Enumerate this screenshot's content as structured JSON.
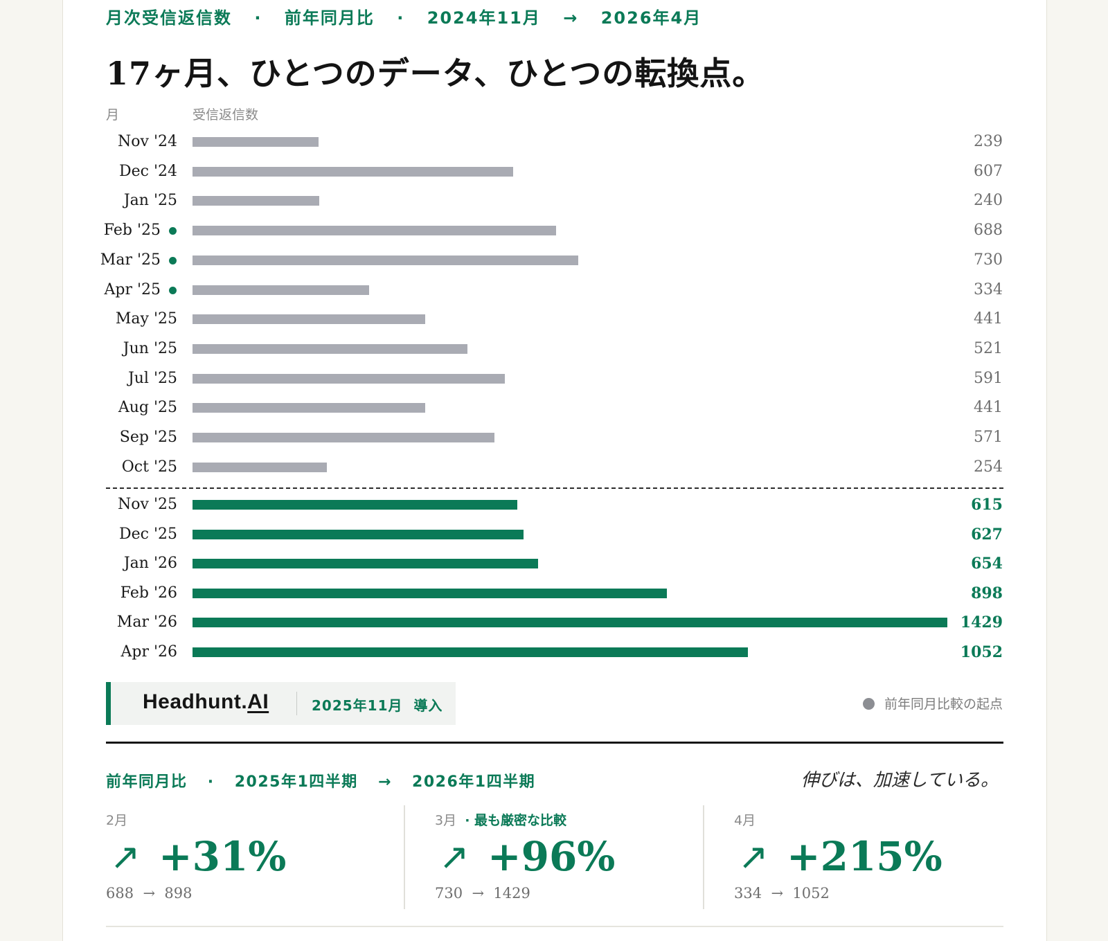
{
  "header": {
    "eyebrow": [
      "月次受信返信数",
      "·",
      "前年同月比",
      "·",
      "2024年11月",
      "→",
      "2026年4月"
    ],
    "headline": "17ヶ月、ひとつのデータ、ひとつの転換点。"
  },
  "chart_data": {
    "type": "bar",
    "orientation": "horizontal",
    "xlabel": "受信返信数",
    "ylabel": "月",
    "xlim": [
      0,
      1429
    ],
    "grid": false,
    "categories": [
      "Nov '24",
      "Dec '24",
      "Jan '25",
      "Feb '25",
      "Mar '25",
      "Apr '25",
      "May '25",
      "Jun '25",
      "Jul '25",
      "Aug '25",
      "Sep '25",
      "Oct '25",
      "Nov '25",
      "Dec '25",
      "Jan '26",
      "Feb '26",
      "Mar '26",
      "Apr '26"
    ],
    "values": [
      239,
      607,
      240,
      688,
      730,
      334,
      441,
      521,
      591,
      441,
      571,
      254,
      615,
      627,
      654,
      898,
      1429,
      1052
    ],
    "value_labels": [
      "239",
      "607",
      "240",
      "688",
      "730",
      "334",
      "441",
      "521",
      "591",
      "441",
      "571",
      "254",
      "615",
      "627",
      "654",
      "898",
      "1429",
      "1052"
    ],
    "highlight_months": [
      "Feb '25",
      "Mar '25",
      "Apr '25"
    ],
    "after_introduction_from": "Nov '25",
    "colors": {
      "before": "#a9abb3",
      "after": "#0b7a57",
      "marker": "#0b7a57"
    }
  },
  "brand": {
    "name_prefix": "Headhunt.",
    "name_suffix": "AI",
    "intro_date": "2025年11月",
    "intro_label": "導入"
  },
  "legend": {
    "label": "前年同月比較の起点",
    "color": "#8c8e93"
  },
  "yoy": {
    "title": [
      "前年同月比",
      "·",
      "2025年1四半期",
      "→",
      "2026年1四半期"
    ],
    "tagline": "伸びは、加速している。",
    "stats": [
      {
        "month": "2月",
        "note": "",
        "arrow": "↗",
        "pct": "+31%",
        "from": "688",
        "sep": "→",
        "to": "898"
      },
      {
        "month": "3月",
        "note": "· 最も厳密な比較",
        "arrow": "↗",
        "pct": "+96%",
        "from": "730",
        "sep": "→",
        "to": "1429"
      },
      {
        "month": "4月",
        "note": "",
        "arrow": "↗",
        "pct": "+215%",
        "from": "334",
        "sep": "→",
        "to": "1052"
      }
    ]
  }
}
